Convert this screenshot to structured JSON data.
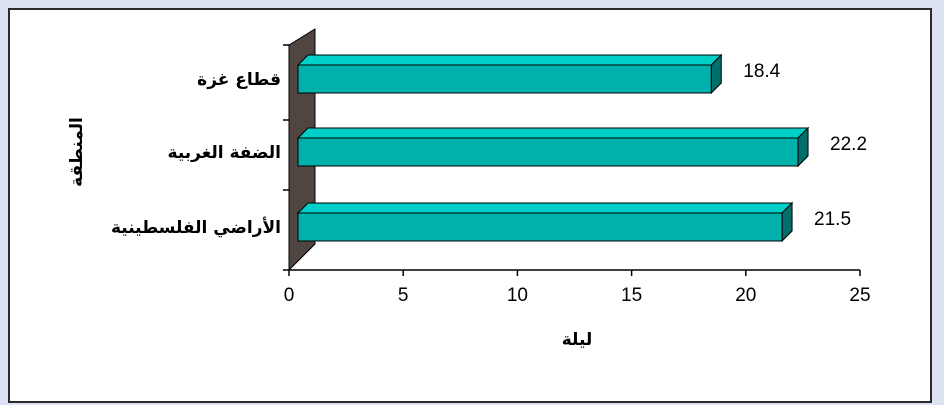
{
  "chart_data": {
    "type": "bar",
    "orientation": "horizontal",
    "categories": [
      "قطاع غزة",
      "الضفة الغربية",
      "الأراضي الفلسطينية"
    ],
    "values": [
      18.4,
      22.2,
      21.5
    ],
    "value_labels": [
      "18.4",
      "22.2",
      "21.5"
    ],
    "xlabel": "ليلة",
    "ylabel": "المنطقة",
    "xlim": [
      0,
      25
    ],
    "xticks": [
      "0",
      "5",
      "10",
      "15",
      "20",
      "25"
    ],
    "grid": false,
    "legend": "none",
    "style": "3d",
    "colors": {
      "bar_front": "#00b0aa",
      "bar_top": "#00cfc8",
      "bar_side": "#006f6a",
      "wall": "#504540",
      "frame_bg": "#dde2f0"
    }
  }
}
